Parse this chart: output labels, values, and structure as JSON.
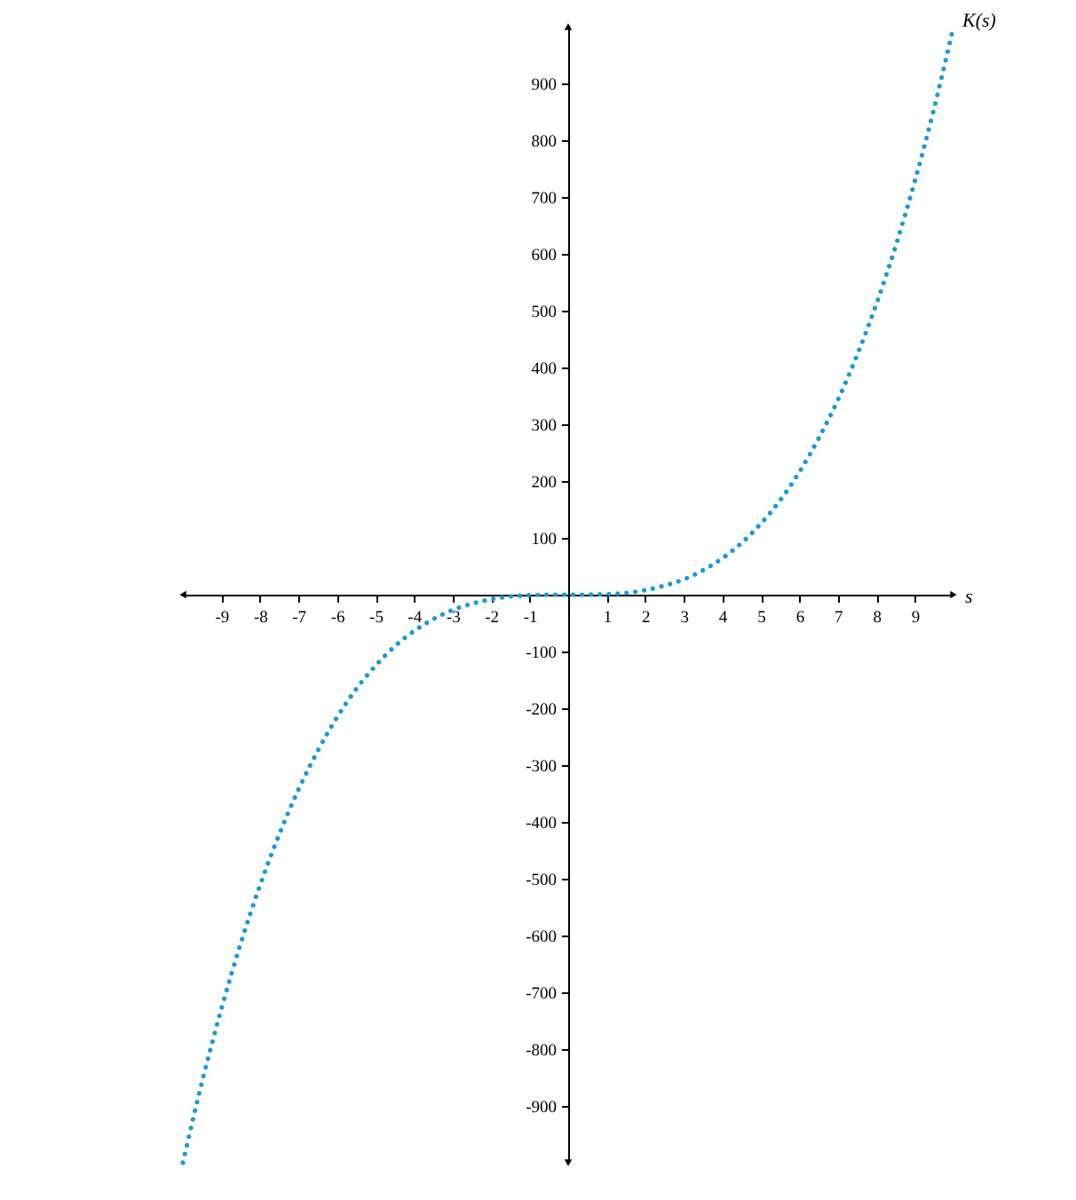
{
  "chart_data": {
    "type": "line",
    "xlabel": "s",
    "x": [
      -10,
      -9.5,
      -9,
      -8.5,
      -8,
      -7.5,
      -7,
      -6.5,
      -6,
      -5.5,
      -5,
      -4.5,
      -4,
      -3.5,
      -3,
      -2.5,
      -2,
      -1.5,
      -1,
      -0.5,
      0,
      0.5,
      1,
      1.5,
      2,
      2.5,
      3,
      3.5,
      4,
      4.5,
      5,
      5.5,
      6,
      6.5,
      7,
      7.5,
      8,
      8.5,
      9,
      9.5,
      10
    ],
    "series": [
      {
        "name": "K(s)",
        "color": "#1b9ad6",
        "values": [
          -1000,
          -857,
          -729,
          -614,
          -512,
          -422,
          -343,
          -275,
          -216,
          -166,
          -125,
          -91,
          -64,
          -43,
          -27,
          -16,
          -8,
          -3,
          -1,
          0,
          0,
          0,
          1,
          3,
          8,
          16,
          27,
          43,
          64,
          91,
          125,
          166,
          216,
          275,
          343,
          422,
          512,
          614,
          729,
          857,
          1000
        ]
      }
    ],
    "xlim": [
      -10,
      10
    ],
    "ylim": [
      -1000,
      1000
    ],
    "xticks": [
      -9,
      -8,
      -7,
      -6,
      -5,
      -4,
      -3,
      -2,
      -1,
      1,
      2,
      3,
      4,
      5,
      6,
      7,
      8,
      9
    ],
    "yticks": [
      -900,
      -800,
      -700,
      -600,
      -500,
      -400,
      -300,
      -200,
      -100,
      100,
      200,
      300,
      400,
      500,
      600,
      700,
      800,
      900
    ],
    "line_style": "dotted"
  }
}
